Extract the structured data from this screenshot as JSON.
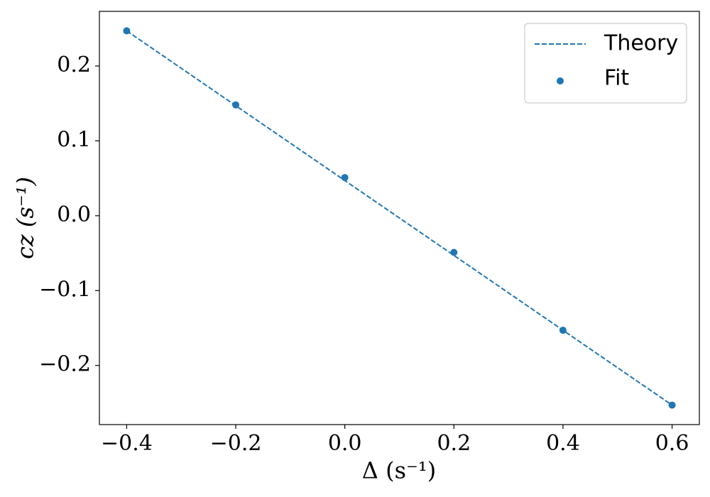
{
  "chart_data": {
    "type": "line",
    "x_label": "Δ (s⁻¹)",
    "y_label": "cz (s⁻¹)",
    "x": [
      -0.4,
      -0.2,
      0,
      0.2,
      0.4,
      0.6
    ],
    "series": [
      {
        "name": "Theory",
        "color": "#1f77b4",
        "style": "dashed",
        "values": [
          0.247,
          0.147,
          0.047,
          -0.053,
          -0.153,
          -0.253
        ]
      },
      {
        "name": "Fit",
        "color": "#1f77b4",
        "style": "markers",
        "values": [
          0.247,
          0.148,
          0.051,
          -0.049,
          -0.153,
          -0.253
        ]
      }
    ],
    "xlim": [
      -0.45,
      0.65
    ],
    "ylim": [
      -0.279,
      0.273
    ],
    "xticks": [
      {
        "value": -0.4,
        "label": "−0.4"
      },
      {
        "value": -0.2,
        "label": "−0.2"
      },
      {
        "value": 0,
        "label": "0.0"
      },
      0.2,
      0.4,
      0.6
    ],
    "yticks": [
      {
        "value": -0.2,
        "label": "−0.2"
      },
      {
        "value": -0.1,
        "label": "−0.1"
      },
      {
        "value": 0,
        "label": "0.0"
      },
      0.1,
      0.2
    ],
    "grid": false,
    "legend": "upper right"
  }
}
